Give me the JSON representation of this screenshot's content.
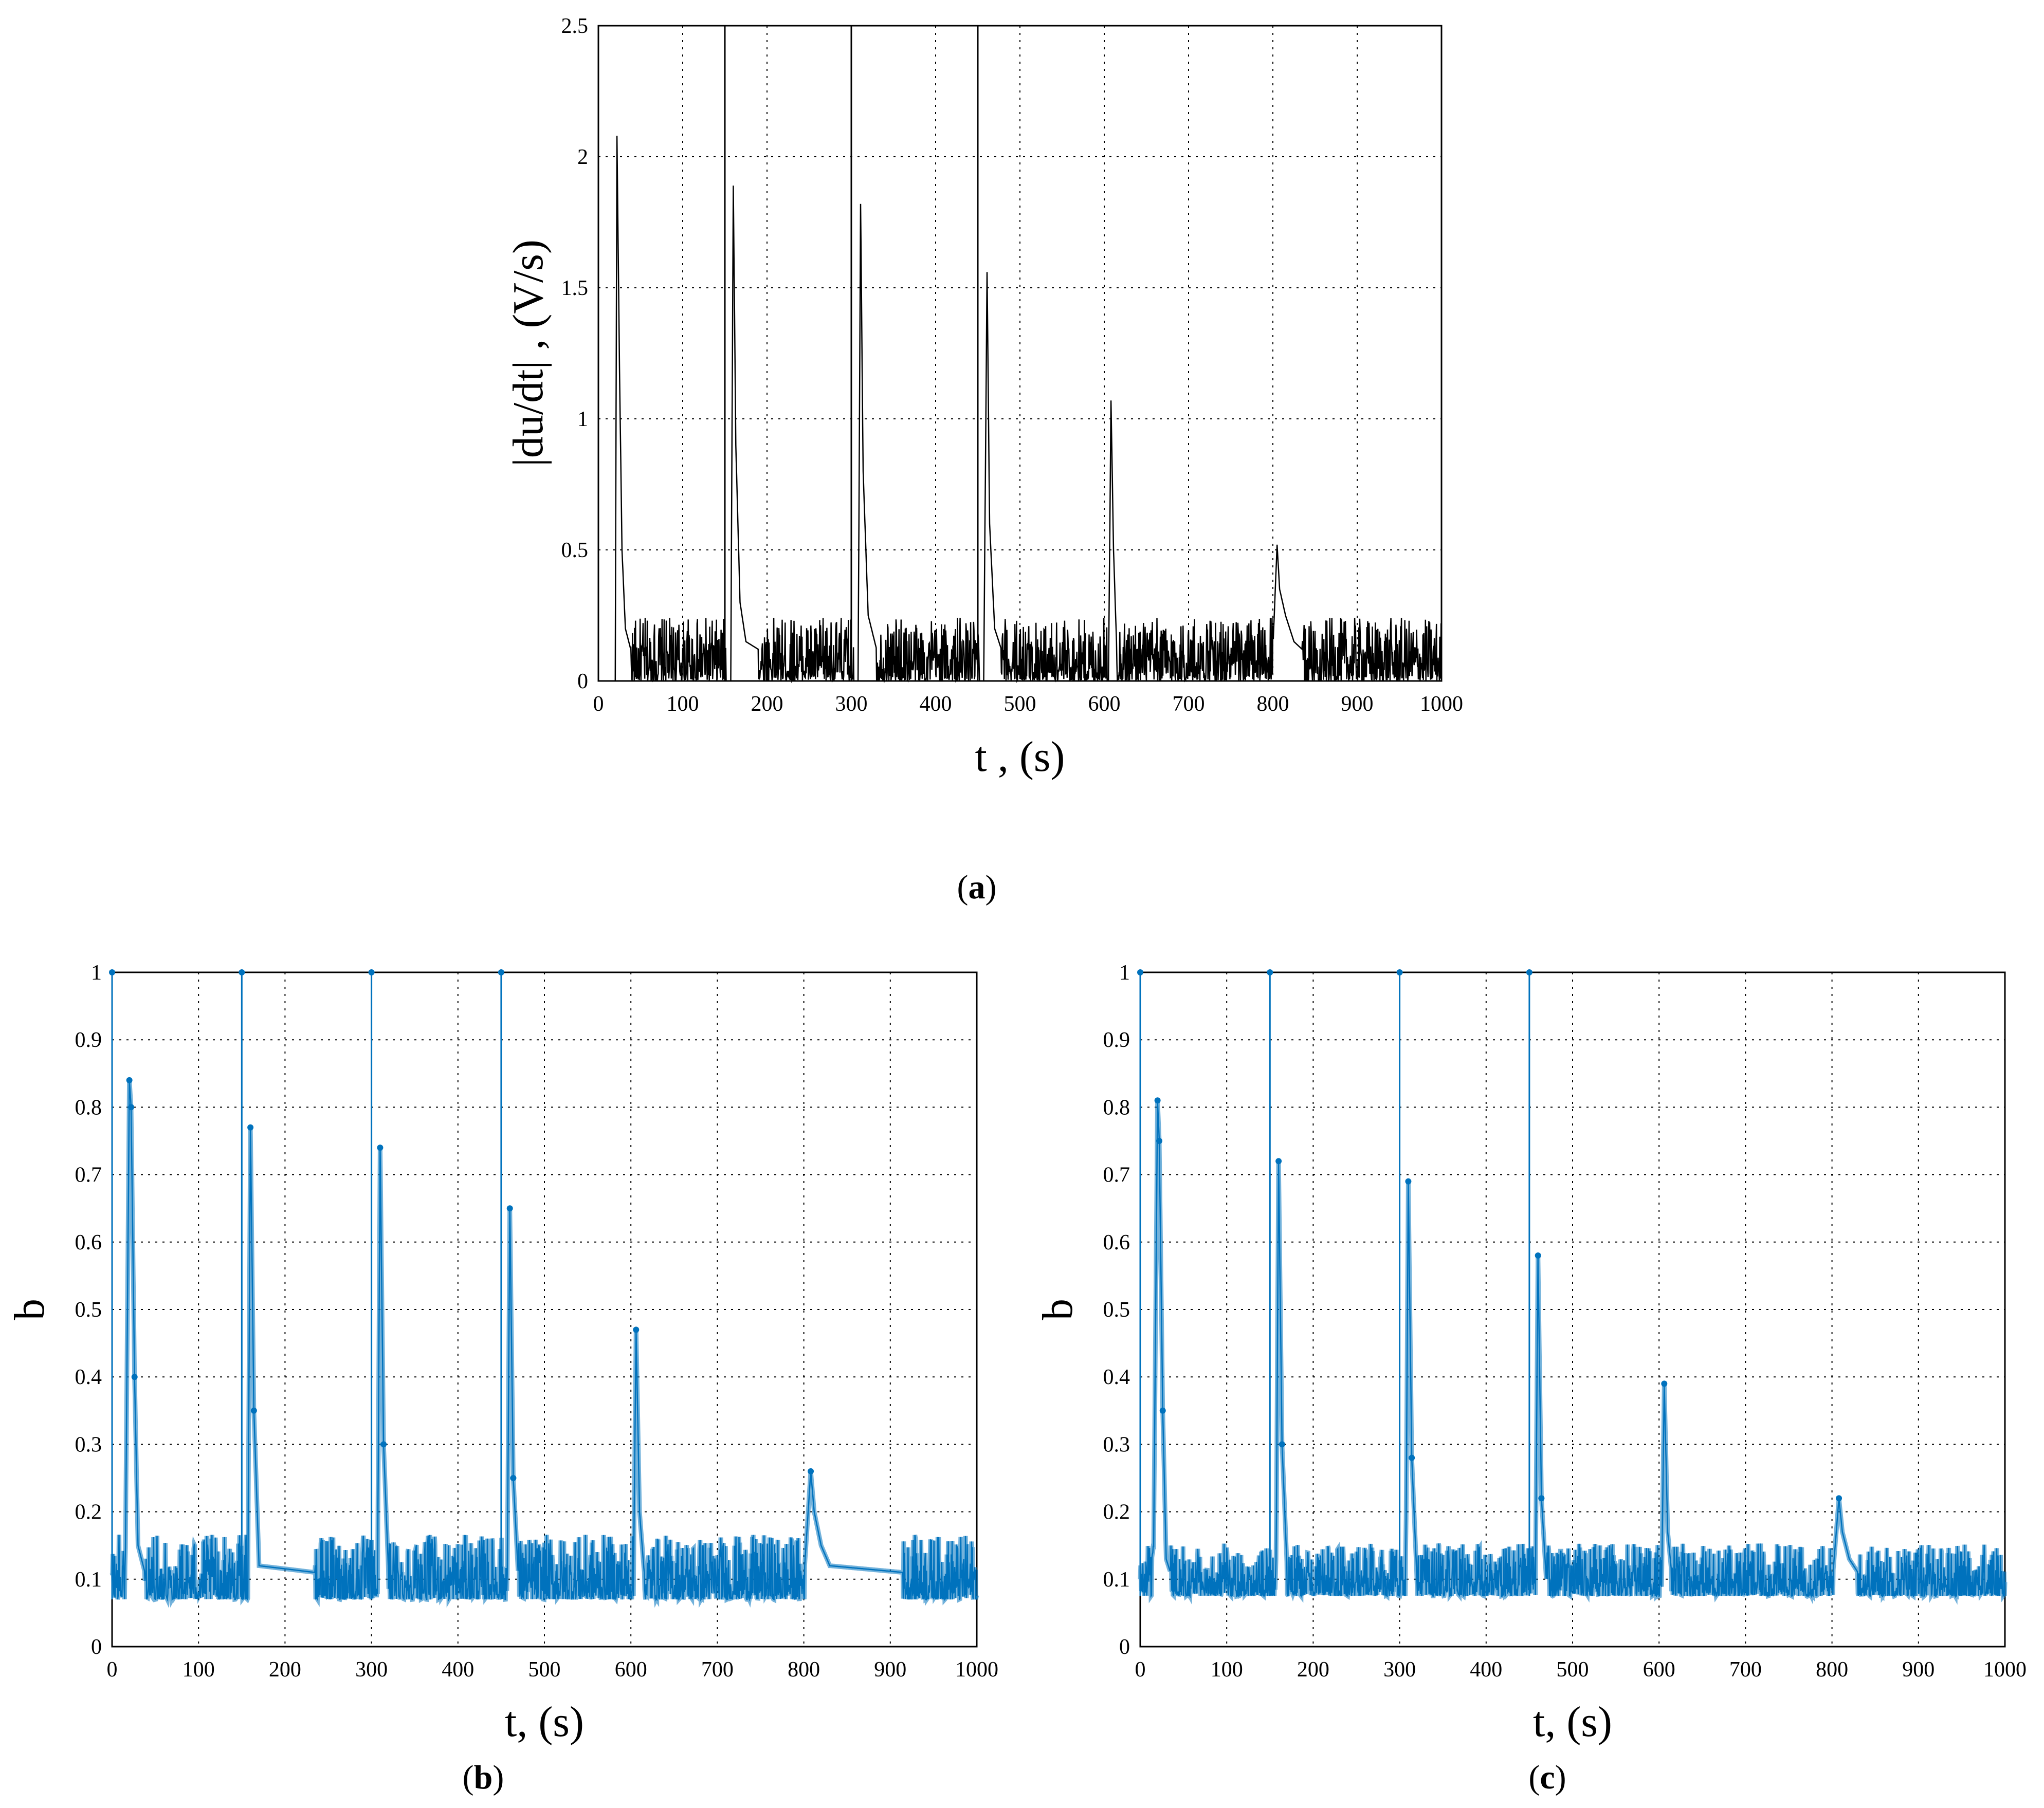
{
  "figure": {
    "panels": [
      {
        "id": "a",
        "caption_letter": "a",
        "xlabel": "t , (s)",
        "ylabel": "|du/dt| , (V/s)"
      },
      {
        "id": "b",
        "caption_letter": "b",
        "xlabel": "t, (s)",
        "ylabel": "b"
      },
      {
        "id": "c",
        "caption_letter": "c",
        "xlabel": "t, (s)",
        "ylabel": "b"
      }
    ]
  },
  "colors": {
    "series_a": "#000000",
    "series_bc": "#0072BD",
    "grid": "#000000"
  },
  "chart_data": [
    {
      "type": "line",
      "title": "",
      "xlabel": "t , (s)",
      "ylabel": "|du/dt| , (V/s)",
      "xlim": [
        0,
        1000
      ],
      "ylim": [
        0,
        2.5
      ],
      "xticks": [
        "0",
        "100",
        "200",
        "300",
        "400",
        "500",
        "600",
        "700",
        "800",
        "900",
        "1000"
      ],
      "yticks": [
        "0",
        "0.5",
        "1",
        "1.5",
        "2",
        "2.5"
      ],
      "grid": true,
      "legend": "none",
      "vertical_lines_at": [
        150,
        300,
        450
      ],
      "series": [
        {
          "x": [
            0,
            20,
            22,
            25,
            28,
            32,
            40,
            60,
            100,
            150,
            152,
            157,
            160,
            163,
            168,
            175,
            200,
            250,
            300,
            303,
            308,
            311,
            314,
            320,
            330,
            400,
            450,
            452,
            457,
            461,
            464,
            470,
            480,
            550,
            600,
            605,
            608,
            611,
            615,
            650,
            700,
            790,
            800,
            805,
            808,
            815,
            825,
            835,
            900,
            950,
            1000
          ],
          "y": [
            0,
            0,
            2.08,
            1.2,
            0.5,
            0.2,
            0.1,
            0.1,
            0.1,
            0.1,
            0,
            0,
            1.89,
            0.9,
            0.3,
            0.15,
            0.1,
            0.1,
            0.1,
            0,
            0,
            1.82,
            0.8,
            0.25,
            0.12,
            0.1,
            0.1,
            0,
            0,
            1.56,
            0.6,
            0.2,
            0.1,
            0.1,
            0.1,
            0,
            1.07,
            0.5,
            0.1,
            0.1,
            0.1,
            0.1,
            0.12,
            0.52,
            0.35,
            0.25,
            0.15,
            0.12,
            0.12,
            0.12,
            0.12
          ]
        }
      ],
      "noise": {
        "baseline": 0.08,
        "typical_max": 0.22
      }
    },
    {
      "type": "line",
      "title": "",
      "xlabel": "t, (s)",
      "ylabel": "b",
      "xlim": [
        0,
        1000
      ],
      "ylim": [
        0,
        1
      ],
      "xticks": [
        "0",
        "100",
        "200",
        "300",
        "400",
        "500",
        "600",
        "700",
        "800",
        "900",
        "1000"
      ],
      "yticks": [
        "0",
        "0.1",
        "0.2",
        "0.3",
        "0.4",
        "0.5",
        "0.6",
        "0.7",
        "0.8",
        "0.9",
        "1"
      ],
      "grid": true,
      "legend": "none",
      "markers": true,
      "points_at_one": [
        0,
        150,
        300,
        450
      ],
      "series": [
        {
          "x": [
            0,
            15,
            20,
            22,
            26,
            30,
            40,
            150,
            157,
            160,
            164,
            170,
            300,
            307,
            310,
            314,
            320,
            450,
            457,
            460,
            464,
            470,
            600,
            603,
            606,
            610,
            616,
            800,
            808,
            812,
            820,
            830,
            1000
          ],
          "y": [
            0.07,
            0.07,
            0.84,
            0.8,
            0.4,
            0.15,
            0.1,
            0.1,
            0.1,
            0.77,
            0.35,
            0.12,
            0.1,
            0.1,
            0.74,
            0.3,
            0.1,
            0.1,
            0.1,
            0.65,
            0.25,
            0.1,
            0.1,
            0.1,
            0.47,
            0.2,
            0.1,
            0.1,
            0.26,
            0.2,
            0.15,
            0.12,
            0.1
          ]
        }
      ],
      "noise": {
        "baseline": 0.07,
        "typical_max": 0.15
      }
    },
    {
      "type": "line",
      "title": "",
      "xlabel": "t, (s)",
      "ylabel": "b",
      "xlim": [
        0,
        1000
      ],
      "ylim": [
        0,
        1
      ],
      "xticks": [
        "0",
        "100",
        "200",
        "300",
        "400",
        "500",
        "600",
        "700",
        "800",
        "900",
        "1000"
      ],
      "yticks": [
        "0",
        "0.1",
        "0.2",
        "0.3",
        "0.4",
        "0.5",
        "0.6",
        "0.7",
        "0.8",
        "0.9",
        "1"
      ],
      "grid": true,
      "legend": "none",
      "markers": true,
      "points_at_one": [
        0,
        150,
        300,
        450
      ],
      "series": [
        {
          "x": [
            0,
            15,
            20,
            22,
            26,
            30,
            40,
            150,
            157,
            160,
            164,
            170,
            300,
            307,
            310,
            314,
            320,
            450,
            457,
            460,
            464,
            470,
            600,
            603,
            606,
            610,
            616,
            800,
            808,
            812,
            820,
            830,
            1000
          ],
          "y": [
            0.075,
            0.075,
            0.81,
            0.75,
            0.35,
            0.13,
            0.09,
            0.09,
            0.09,
            0.72,
            0.3,
            0.11,
            0.09,
            0.09,
            0.69,
            0.28,
            0.1,
            0.09,
            0.09,
            0.58,
            0.22,
            0.09,
            0.09,
            0.09,
            0.39,
            0.17,
            0.09,
            0.09,
            0.22,
            0.17,
            0.13,
            0.11,
            0.09
          ]
        }
      ],
      "noise": {
        "baseline": 0.075,
        "typical_max": 0.14
      }
    }
  ]
}
